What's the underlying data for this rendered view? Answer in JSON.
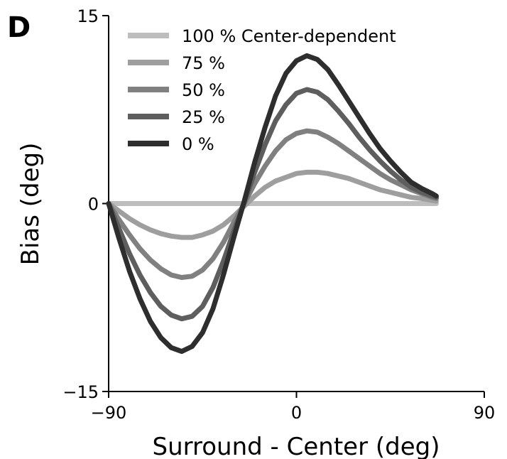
{
  "panel_label": "D",
  "chart_data": {
    "type": "line",
    "title": "",
    "xlabel": "Surround - Center (deg)",
    "ylabel": "Bias (deg)",
    "xlim": [
      -90,
      90
    ],
    "ylim": [
      -15,
      15
    ],
    "xticks": [
      -90,
      0,
      90
    ],
    "xtick_labels": [
      "−90",
      "0",
      "90"
    ],
    "yticks": [
      -15,
      0,
      15
    ],
    "ytick_labels": [
      "−15",
      "0",
      "15"
    ],
    "grid": false,
    "legend_position": "top-left",
    "x": [
      -90,
      -85,
      -80,
      -75,
      -70,
      -65,
      -60,
      -55,
      -50,
      -45,
      -40,
      -35,
      -30,
      -25,
      -20,
      -15,
      -10,
      -5,
      0,
      5,
      10,
      15,
      20,
      25,
      30,
      35,
      40,
      45,
      50,
      55,
      60,
      65,
      67
    ],
    "series": [
      {
        "name": "100 % Center-dependent",
        "color": "#bdbdbd",
        "values": [
          0,
          0,
          0,
          0,
          0,
          0,
          0,
          0,
          0,
          0,
          0,
          0,
          0,
          0,
          0,
          0,
          0,
          0,
          0,
          0,
          0,
          0,
          0,
          0,
          0,
          0,
          0,
          0,
          0,
          0,
          0,
          0,
          0
        ]
      },
      {
        "name": "75 %",
        "color": "#9e9e9e",
        "values": [
          0,
          -0.6,
          -1.2,
          -1.7,
          -2.1,
          -2.4,
          -2.6,
          -2.7,
          -2.7,
          -2.5,
          -2.2,
          -1.7,
          -1.0,
          -0.2,
          0.6,
          1.3,
          1.8,
          2.1,
          2.4,
          2.5,
          2.5,
          2.4,
          2.2,
          2.0,
          1.7,
          1.4,
          1.1,
          0.9,
          0.7,
          0.5,
          0.4,
          0.25,
          0.2
        ]
      },
      {
        "name": "50 %",
        "color": "#808080",
        "values": [
          0,
          -1.3,
          -2.5,
          -3.6,
          -4.5,
          -5.2,
          -5.7,
          -5.9,
          -5.8,
          -5.3,
          -4.4,
          -3.1,
          -1.5,
          0.0,
          1.6,
          3.0,
          4.2,
          5.1,
          5.6,
          5.8,
          5.7,
          5.3,
          4.8,
          4.2,
          3.6,
          3.0,
          2.4,
          1.9,
          1.5,
          1.1,
          0.8,
          0.5,
          0.4
        ]
      },
      {
        "name": "25 %",
        "color": "#5e5e5e",
        "values": [
          0,
          -2.0,
          -4.0,
          -5.7,
          -7.1,
          -8.2,
          -8.9,
          -9.2,
          -9.0,
          -8.2,
          -6.7,
          -4.6,
          -2.2,
          0.1,
          2.5,
          4.7,
          6.6,
          7.9,
          8.8,
          9.1,
          8.9,
          8.3,
          7.4,
          6.4,
          5.3,
          4.3,
          3.4,
          2.6,
          1.9,
          1.3,
          0.9,
          0.6,
          0.5
        ]
      },
      {
        "name": "0 %",
        "color": "#2e2e2e",
        "values": [
          0,
          -2.8,
          -5.4,
          -7.6,
          -9.4,
          -10.7,
          -11.5,
          -11.8,
          -11.4,
          -10.3,
          -8.4,
          -5.7,
          -2.7,
          0.2,
          3.3,
          6.1,
          8.6,
          10.4,
          11.4,
          11.8,
          11.5,
          10.7,
          9.5,
          8.2,
          6.9,
          5.6,
          4.4,
          3.4,
          2.5,
          1.7,
          1.2,
          0.8,
          0.6
        ]
      }
    ]
  }
}
